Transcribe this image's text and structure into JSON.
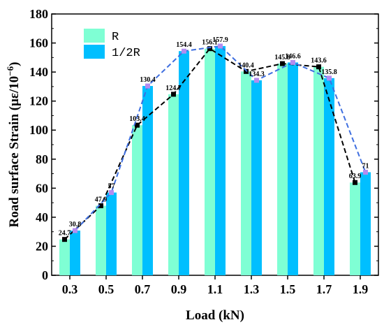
{
  "chart_data": {
    "type": "bar",
    "xlabel": "Load (kN)",
    "ylabel_main": "Road surface Strain (με/10",
    "ylabel_exp": "−6",
    "ylabel_close": ")",
    "categories": [
      "0.3",
      "0.5",
      "0.7",
      "0.9",
      "1.1",
      "1.3",
      "1.5",
      "1.7",
      "1.9"
    ],
    "series": [
      {
        "name": "R",
        "values": [
          24.7,
          47.9,
          103.4,
          124.7,
          156.1,
          140.4,
          145.8,
          143.6,
          63.9
        ],
        "labels": [
          "24.7",
          "47.9",
          "103.4",
          "124.7",
          "156.1",
          "140.4",
          "145.8",
          "143.6",
          "63.9"
        ],
        "bar_color": "#7fffd4",
        "line_color": "#000000",
        "marker": "square",
        "marker_color": "#000000"
      },
      {
        "name": "1/2R",
        "values": [
          30.8,
          57,
          130.4,
          154.4,
          157.9,
          134.3,
          146.6,
          135.8,
          71
        ],
        "labels": [
          "30.8",
          "57",
          "130.4",
          "154.4",
          "157.9",
          "134.3",
          "146.6",
          "135.8",
          "71"
        ],
        "bar_color": "#00bfff",
        "line_color": "#3f6fe0",
        "marker": "square",
        "marker_color": "#b48cf0"
      }
    ],
    "ylim": [
      0,
      180
    ],
    "yticks": [
      "0",
      "20",
      "40",
      "60",
      "80",
      "100",
      "120",
      "140",
      "160",
      "180"
    ],
    "grid": false,
    "legend_position": "top-left"
  }
}
